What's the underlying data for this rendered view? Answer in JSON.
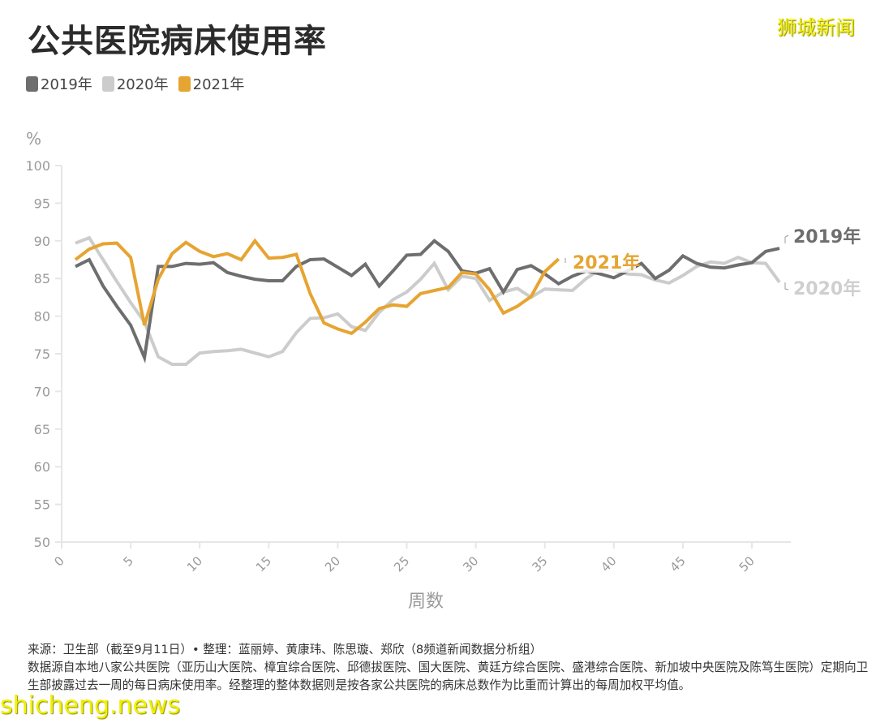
{
  "header": {
    "title": "公共医院病床使用率",
    "watermark": "狮城新闻"
  },
  "legend": [
    {
      "label": "2019年",
      "color": "#6e6e6e"
    },
    {
      "label": "2020年",
      "color": "#cccccc"
    },
    {
      "label": "2021年",
      "color": "#e6a431"
    }
  ],
  "colors": {
    "series_2019": "#6e6e6e",
    "series_2020": "#cccccc",
    "series_2021": "#e6a431",
    "axis": "#e6e6e6",
    "tick_label": "#9a9a9a"
  },
  "chart_data": {
    "type": "line",
    "title": "公共医院病床使用率",
    "xlabel": "周数",
    "ylabel": "%",
    "xlim": [
      0,
      52
    ],
    "ylim": [
      50,
      100
    ],
    "x_ticks": [
      0,
      5,
      10,
      15,
      20,
      25,
      30,
      35,
      40,
      45,
      50
    ],
    "y_ticks": [
      50,
      55,
      60,
      65,
      70,
      75,
      80,
      85,
      90,
      95,
      100
    ],
    "grid": false,
    "legend_position": "top-left",
    "series": [
      {
        "name": "2019年",
        "x": [
          1,
          2,
          3,
          4,
          5,
          6,
          7,
          8,
          9,
          10,
          11,
          12,
          13,
          14,
          15,
          16,
          17,
          18,
          19,
          20,
          21,
          22,
          23,
          24,
          25,
          26,
          27,
          28,
          29,
          30,
          31,
          32,
          33,
          34,
          35,
          36,
          37,
          38,
          39,
          40,
          41,
          42,
          43,
          44,
          45,
          46,
          47,
          48,
          49,
          50,
          51,
          52
        ],
        "values": [
          86.6,
          87.5,
          84.0,
          81.3,
          78.8,
          74.5,
          86.6,
          86.6,
          87.0,
          86.9,
          87.1,
          85.8,
          85.3,
          84.9,
          84.7,
          84.7,
          86.6,
          87.5,
          87.6,
          86.5,
          85.4,
          86.9,
          84.0,
          86.0,
          88.1,
          88.2,
          90.0,
          88.6,
          86.0,
          85.7,
          86.3,
          83.2,
          86.2,
          86.7,
          85.6,
          84.3,
          85.3,
          86.0,
          85.6,
          85.1,
          86.0,
          87.0,
          85.0,
          86.1,
          88.0,
          87.0,
          86.5,
          86.4,
          86.8,
          87.1,
          88.6,
          89.0
        ]
      },
      {
        "name": "2020年",
        "x": [
          1,
          2,
          3,
          4,
          5,
          6,
          7,
          8,
          9,
          10,
          11,
          12,
          13,
          14,
          15,
          16,
          17,
          18,
          19,
          20,
          21,
          22,
          23,
          24,
          25,
          26,
          27,
          28,
          29,
          30,
          31,
          32,
          33,
          34,
          35,
          36,
          37,
          38,
          39,
          40,
          41,
          42,
          43,
          44,
          45,
          46,
          47,
          48,
          49,
          50,
          51,
          52
        ],
        "values": [
          89.7,
          90.4,
          87.5,
          84.6,
          81.8,
          79.2,
          74.6,
          73.6,
          73.6,
          75.1,
          75.3,
          75.4,
          75.6,
          75.1,
          74.6,
          75.3,
          77.8,
          79.7,
          79.8,
          80.3,
          78.6,
          78.1,
          80.5,
          82.2,
          83.2,
          84.9,
          87.0,
          83.5,
          85.3,
          85.0,
          82.1,
          83.2,
          83.7,
          82.5,
          83.6,
          83.5,
          83.4,
          85.0,
          86.2,
          86.0,
          85.6,
          85.5,
          84.8,
          84.4,
          85.4,
          86.6,
          87.2,
          87.0,
          87.8,
          87.1,
          87.0,
          84.5
        ]
      },
      {
        "name": "2021年",
        "x": [
          1,
          2,
          3,
          4,
          5,
          6,
          7,
          8,
          9,
          10,
          11,
          12,
          13,
          14,
          15,
          16,
          17,
          18,
          19,
          20,
          21,
          22,
          23,
          24,
          25,
          26,
          27,
          28,
          29,
          30,
          31,
          32,
          33,
          34,
          35,
          36
        ],
        "values": [
          87.5,
          88.9,
          89.6,
          89.7,
          87.8,
          78.8,
          84.9,
          88.3,
          89.8,
          88.6,
          87.9,
          88.3,
          87.5,
          90.0,
          87.7,
          87.8,
          88.2,
          83.0,
          79.1,
          78.3,
          77.7,
          79.2,
          81.0,
          81.5,
          81.3,
          83.0,
          83.4,
          83.8,
          85.8,
          85.6,
          83.5,
          80.4,
          81.3,
          82.6,
          85.9,
          87.6
        ]
      }
    ],
    "annotations": [
      {
        "text": "2019年",
        "x": 52,
        "y": 89.0
      },
      {
        "text": "2020年",
        "x": 52,
        "y": 84.5
      },
      {
        "text": "2021年",
        "x": 36,
        "y": 87.6
      }
    ]
  },
  "footer": {
    "source_line": "来源：卫生部（截至9月11日）• 整理：蓝丽婷、黄康玮、陈思璇、郑欣（8频道新闻数据分析组）",
    "note_line": "数据源自本地八家公共医院（亚历山大医院、樟宜综合医院、邱德拔医院、国大医院、黄廷方综合医院、盛港综合医院、新加坡中央医院及陈笃生医院）定期向卫生部披露过去一周的每日病床使用率。经整理的整体数据则是按各家公共医院的病床总数作为比重而计算出的每周加权平均值。",
    "watermark": "shicheng.news"
  }
}
